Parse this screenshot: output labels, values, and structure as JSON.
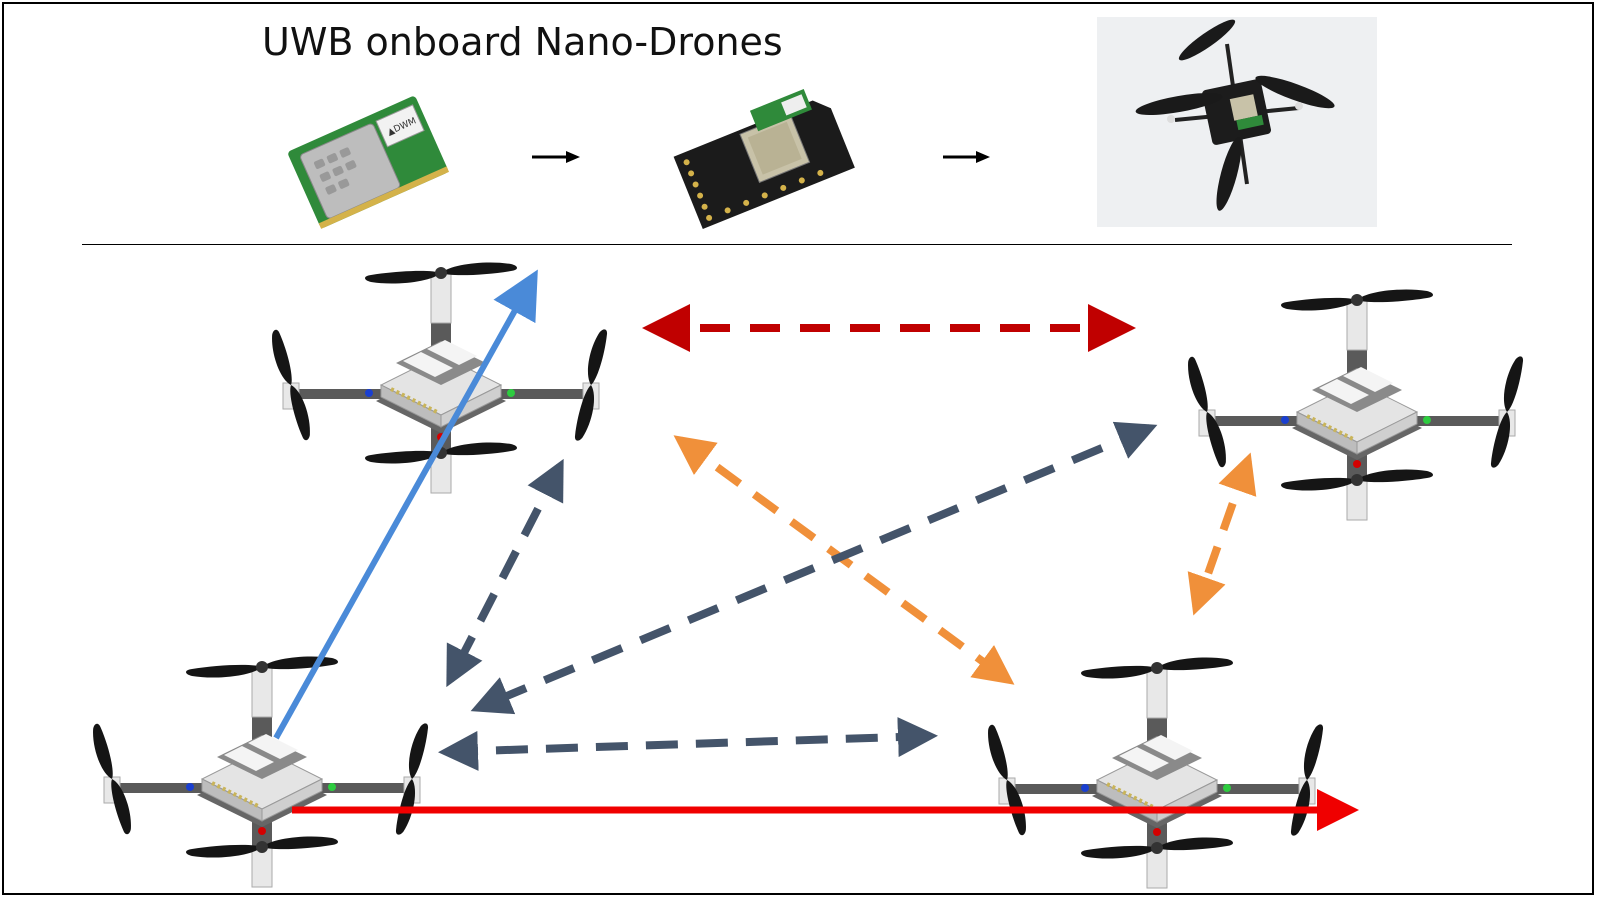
{
  "header": {
    "title": "UWB onboard Nano-Drones"
  },
  "pipeline": {
    "stages": [
      {
        "name": "uwb-module",
        "label": "UWB chip module",
        "chip_text": "▲DWM"
      },
      {
        "name": "uwb-deck",
        "label": "UWB expansion deck"
      },
      {
        "name": "nano-drone-photo",
        "label": "Nano-drone with UWB deck"
      }
    ]
  },
  "drones": [
    {
      "id": "drone-top-left"
    },
    {
      "id": "drone-top-right"
    },
    {
      "id": "drone-bottom-left"
    },
    {
      "id": "drone-bottom-right"
    }
  ],
  "colors": {
    "blue_solid": "#4a8ad8",
    "red_solid": "#f00000",
    "dark_red_dashed": "#c00000",
    "orange_dashed": "#f0903a",
    "slate_dashed": "#44546a",
    "drone_body": "#555555",
    "board": "#d9d9d9"
  }
}
